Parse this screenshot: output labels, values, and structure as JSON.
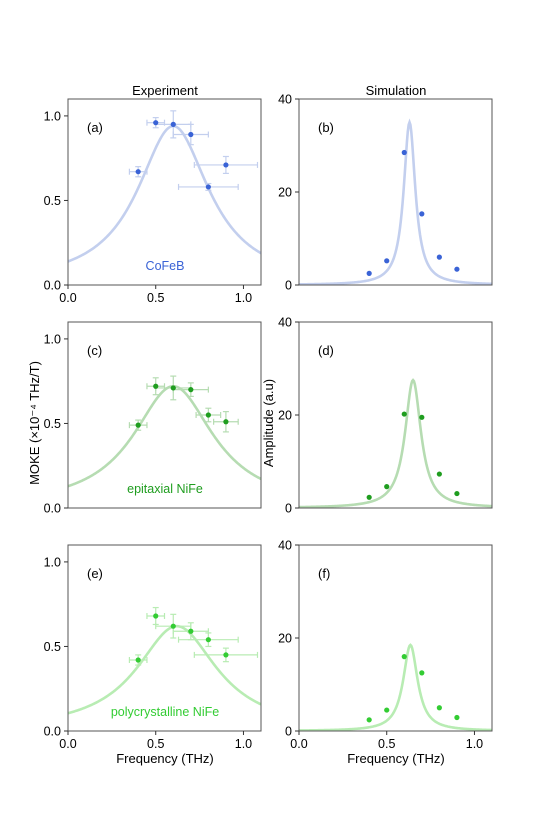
{
  "figure": {
    "left_column_title": "Experiment",
    "right_column_title": "Simulation",
    "left_ylabel": "MOKE (×10⁻⁴ THz/T)",
    "right_ylabel": "Amplitude (a.u)",
    "xlabel": "Frequency (THz)"
  },
  "chart_data": [
    {
      "id": "a",
      "type": "scatter",
      "panel_label": "(a)",
      "column": "Experiment",
      "annotation": "CoFeB",
      "color": "#3a63d6",
      "fit_color": "#c3cfee",
      "xlim": [
        0.0,
        1.1
      ],
      "ylim": [
        0.0,
        1.1
      ],
      "xticks": [
        "0.0",
        "0.5",
        "1.0"
      ],
      "yticks": [
        "0.0",
        "0.5",
        "1.0"
      ],
      "points": [
        {
          "x": 0.4,
          "y": 0.67,
          "xerr": 0.05,
          "yerr": 0.03
        },
        {
          "x": 0.5,
          "y": 0.96,
          "xerr": 0.05,
          "yerr": 0.03
        },
        {
          "x": 0.6,
          "y": 0.95,
          "xerr": 0.1,
          "yerr": 0.08
        },
        {
          "x": 0.7,
          "y": 0.89,
          "xerr": 0.1,
          "yerr": 0.06
        },
        {
          "x": 0.8,
          "y": 0.58,
          "xerr": 0.17,
          "yerr": 0.02
        },
        {
          "x": 0.9,
          "y": 0.71,
          "xerr": 0.18,
          "yerr": 0.05
        }
      ],
      "fit": {
        "model": "lorentzian",
        "center": 0.6,
        "width": 0.25,
        "amplitude": 0.94,
        "offset": 0.0
      }
    },
    {
      "id": "b",
      "type": "scatter",
      "panel_label": "(b)",
      "column": "Simulation",
      "color": "#3a63d6",
      "fit_color": "#c3cfee",
      "xlim": [
        0.0,
        1.1
      ],
      "ylim": [
        0,
        40
      ],
      "xticks": [],
      "yticks": [
        "0",
        "20",
        "40"
      ],
      "points": [
        {
          "x": 0.4,
          "y": 2.5
        },
        {
          "x": 0.5,
          "y": 5.2
        },
        {
          "x": 0.6,
          "y": 28.5
        },
        {
          "x": 0.7,
          "y": 15.3
        },
        {
          "x": 0.8,
          "y": 6.0
        },
        {
          "x": 0.9,
          "y": 3.4
        }
      ],
      "fit": {
        "model": "lorentzian",
        "center": 0.63,
        "width": 0.04,
        "amplitude": 35.0,
        "offset": 0.0
      }
    },
    {
      "id": "c",
      "type": "scatter",
      "panel_label": "(c)",
      "column": "Experiment",
      "annotation": "epitaxial NiFe",
      "color": "#1f9d1f",
      "fit_color": "#b6dcb2",
      "xlim": [
        0.0,
        1.1
      ],
      "ylim": [
        0.0,
        1.1
      ],
      "xticks": [],
      "yticks": [
        "0.0",
        "0.5",
        "1.0"
      ],
      "points": [
        {
          "x": 0.4,
          "y": 0.49,
          "xerr": 0.05,
          "yerr": 0.03
        },
        {
          "x": 0.5,
          "y": 0.72,
          "xerr": 0.05,
          "yerr": 0.05
        },
        {
          "x": 0.6,
          "y": 0.71,
          "xerr": 0.1,
          "yerr": 0.07
        },
        {
          "x": 0.7,
          "y": 0.7,
          "xerr": 0.1,
          "yerr": 0.04
        },
        {
          "x": 0.8,
          "y": 0.55,
          "xerr": 0.07,
          "yerr": 0.04
        },
        {
          "x": 0.9,
          "y": 0.51,
          "xerr": 0.07,
          "yerr": 0.06
        }
      ],
      "fit": {
        "model": "lorentzian",
        "center": 0.6,
        "width": 0.28,
        "amplitude": 0.72,
        "offset": 0.0
      }
    },
    {
      "id": "d",
      "type": "scatter",
      "panel_label": "(d)",
      "column": "Simulation",
      "color": "#1f9d1f",
      "fit_color": "#b6dcb2",
      "xlim": [
        0.0,
        1.1
      ],
      "ylim": [
        0,
        40
      ],
      "xticks": [],
      "yticks": [
        "0",
        "20",
        "40"
      ],
      "points": [
        {
          "x": 0.4,
          "y": 2.3
        },
        {
          "x": 0.5,
          "y": 4.6
        },
        {
          "x": 0.6,
          "y": 20.2
        },
        {
          "x": 0.7,
          "y": 19.5
        },
        {
          "x": 0.8,
          "y": 7.3
        },
        {
          "x": 0.9,
          "y": 3.1
        }
      ],
      "fit": {
        "model": "lorentzian",
        "center": 0.65,
        "width": 0.055,
        "amplitude": 27.5,
        "offset": 0.0
      }
    },
    {
      "id": "e",
      "type": "scatter",
      "panel_label": "(e)",
      "column": "Experiment",
      "annotation": "polycrystalline NiFe",
      "color": "#33cc33",
      "fit_color": "#b8ecb3",
      "xlim": [
        0.0,
        1.1
      ],
      "ylim": [
        0.0,
        1.1
      ],
      "xticks": [
        "0.0",
        "0.5",
        "1.0"
      ],
      "yticks": [
        "0.0",
        "0.5",
        "1.0"
      ],
      "points": [
        {
          "x": 0.4,
          "y": 0.42,
          "xerr": 0.05,
          "yerr": 0.03
        },
        {
          "x": 0.5,
          "y": 0.68,
          "xerr": 0.05,
          "yerr": 0.05
        },
        {
          "x": 0.6,
          "y": 0.62,
          "xerr": 0.1,
          "yerr": 0.07
        },
        {
          "x": 0.7,
          "y": 0.59,
          "xerr": 0.1,
          "yerr": 0.05
        },
        {
          "x": 0.8,
          "y": 0.54,
          "xerr": 0.17,
          "yerr": 0.04
        },
        {
          "x": 0.9,
          "y": 0.45,
          "xerr": 0.18,
          "yerr": 0.04
        }
      ],
      "fit": {
        "model": "lorentzian",
        "center": 0.62,
        "width": 0.28,
        "amplitude": 0.62,
        "offset": 0.0
      }
    },
    {
      "id": "f",
      "type": "scatter",
      "panel_label": "(f)",
      "column": "Simulation",
      "color": "#33cc33",
      "fit_color": "#b8ecb3",
      "xlim": [
        0.0,
        1.1
      ],
      "ylim": [
        0,
        40
      ],
      "xticks": [
        "0.0",
        "0.5",
        "1.0"
      ],
      "yticks": [
        "0",
        "20",
        "40"
      ],
      "points": [
        {
          "x": 0.4,
          "y": 2.4
        },
        {
          "x": 0.5,
          "y": 4.5
        },
        {
          "x": 0.6,
          "y": 16.0
        },
        {
          "x": 0.7,
          "y": 12.5
        },
        {
          "x": 0.8,
          "y": 5.0
        },
        {
          "x": 0.9,
          "y": 2.9
        }
      ],
      "fit": {
        "model": "lorentzian",
        "center": 0.635,
        "width": 0.05,
        "amplitude": 18.5,
        "offset": 0.0
      }
    }
  ]
}
